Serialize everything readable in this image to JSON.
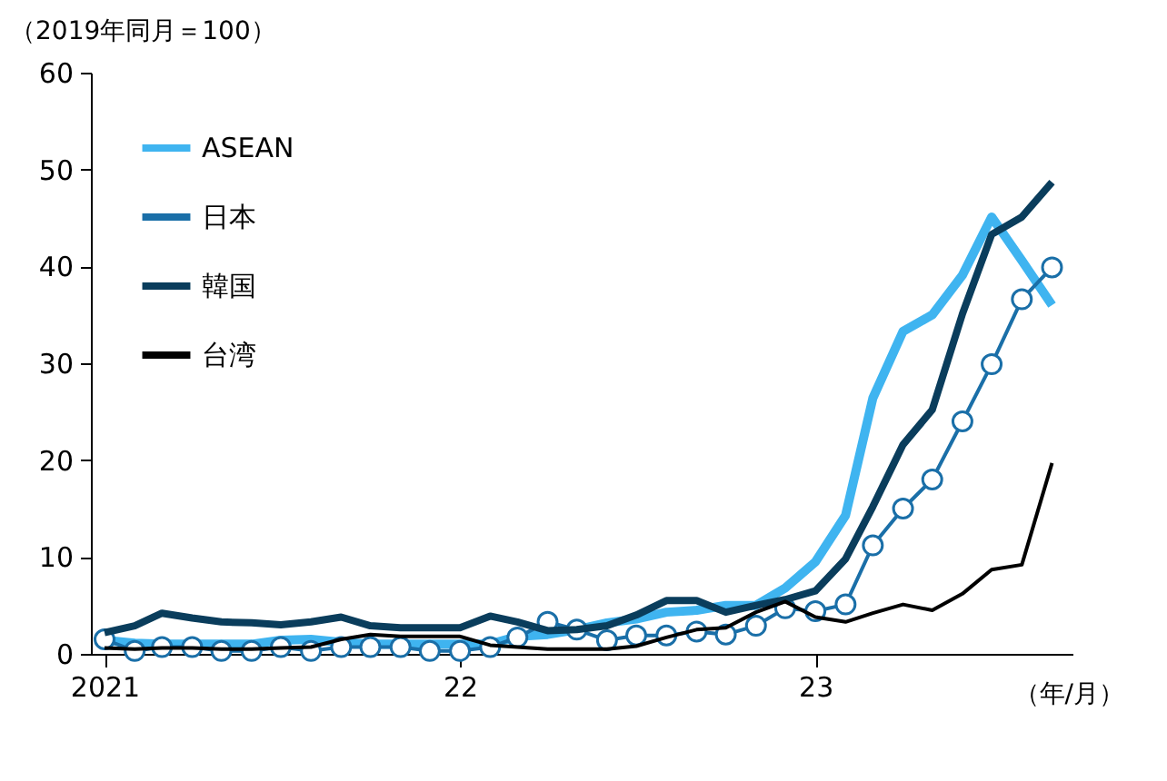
{
  "chart_data": {
    "type": "line",
    "ylabel": "（2019年同月＝100）",
    "xlabel": "（年/月）",
    "x": [
      "2021-01",
      "2021-02",
      "2021-03",
      "2021-04",
      "2021-05",
      "2021-06",
      "2021-07",
      "2021-08",
      "2021-09",
      "2021-10",
      "2021-11",
      "2021-12",
      "2022-01",
      "2022-02",
      "2022-03",
      "2022-04",
      "2022-05",
      "2022-06",
      "2022-07",
      "2022-08",
      "2022-09",
      "2022-10",
      "2022-11",
      "2022-12",
      "2023-01",
      "2023-02",
      "2023-03",
      "2023-04",
      "2023-05",
      "2023-06",
      "2023-07",
      "2023-08",
      "2023-09"
    ],
    "series": [
      {
        "name": "ASEAN",
        "color": "#3fb4f0",
        "marker": "none",
        "values": [
          1.4,
          1.1,
          1.0,
          1.0,
          1.0,
          1.0,
          1.4,
          1.5,
          1.2,
          1.0,
          1.0,
          1.0,
          1.0,
          1.0,
          1.8,
          2.0,
          2.5,
          3.2,
          3.6,
          4.3,
          4.5,
          5.0,
          5.0,
          6.8,
          9.5,
          14.3,
          26.4,
          33.3,
          35.0,
          39.1,
          45.1,
          40.6,
          36.0
        ]
      },
      {
        "name": "日本",
        "color": "#1a6fa8",
        "marker": "circle",
        "values": [
          1.5,
          0.3,
          0.7,
          0.7,
          0.3,
          0.3,
          0.7,
          0.3,
          0.7,
          0.7,
          0.7,
          0.3,
          0.3,
          0.7,
          1.7,
          3.3,
          2.5,
          1.4,
          1.9,
          1.9,
          2.3,
          2.0,
          2.9,
          4.7,
          4.4,
          5.1,
          11.2,
          15.0,
          18.0,
          24.0,
          29.9,
          36.6,
          39.9
        ]
      },
      {
        "name": "韓国",
        "color": "#0a3d5c",
        "marker": "none",
        "values": [
          2.2,
          2.9,
          4.2,
          3.7,
          3.3,
          3.2,
          3.0,
          3.3,
          3.8,
          2.9,
          2.7,
          2.7,
          2.7,
          3.9,
          3.3,
          2.4,
          2.5,
          2.9,
          4.0,
          5.5,
          5.5,
          4.3,
          5.0,
          5.6,
          6.5,
          9.8,
          15.2,
          21.6,
          25.2,
          35.1,
          43.3,
          45.1,
          48.7
        ]
      },
      {
        "name": "台湾",
        "color": "#000000",
        "marker": "none",
        "values": [
          0.6,
          0.5,
          0.6,
          0.6,
          0.5,
          0.5,
          0.6,
          0.7,
          1.5,
          2.0,
          1.8,
          1.8,
          1.8,
          0.9,
          0.7,
          0.5,
          0.5,
          0.5,
          0.8,
          1.7,
          2.5,
          2.7,
          4.3,
          5.4,
          3.8,
          3.3,
          4.2,
          5.1,
          4.5,
          6.2,
          8.7,
          9.2,
          19.7
        ]
      }
    ],
    "xlim": [
      "2020-12-18",
      "2023-09-22"
    ],
    "xticks": [
      {
        "value": "2021-01",
        "label": "2021"
      },
      {
        "value": "2022-01",
        "label": "22"
      },
      {
        "value": "2023-01",
        "label": "23"
      }
    ],
    "ylim": [
      0,
      60
    ],
    "yticks": [
      0,
      10,
      20,
      30,
      40,
      50,
      60
    ],
    "grid": false,
    "legend": "top left",
    "line_style": "solid"
  }
}
